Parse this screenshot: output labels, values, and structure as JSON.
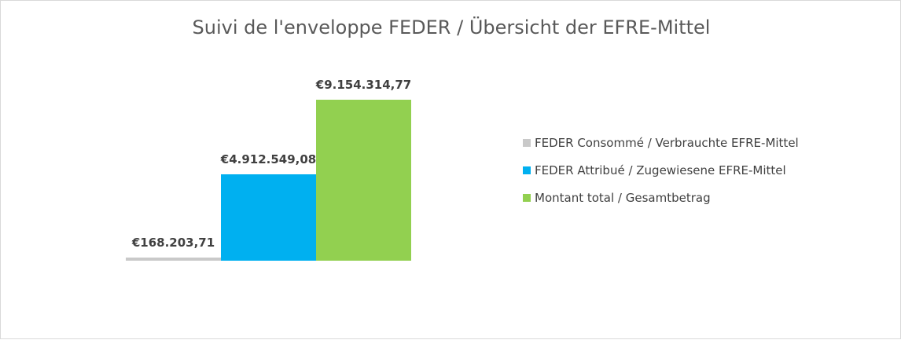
{
  "chart_data": {
    "type": "bar",
    "title": "Suivi de l'enveloppe FEDER / Übersicht der EFRE-Mittel",
    "categories": [
      ""
    ],
    "ylim": [
      0,
      9154314.77
    ],
    "grid": false,
    "legend_position": "right",
    "series": [
      {
        "name": "FEDER Consommé / Verbrauchte EFRE-Mittel",
        "values": [
          168203.71
        ],
        "label": "€168.203,71",
        "color": "#c9c9c9"
      },
      {
        "name": "FEDER Attribué / Zugewiesene EFRE-Mittel",
        "values": [
          4912549.08
        ],
        "label": "€4.912.549,08",
        "color": "#00b0f0"
      },
      {
        "name": "Montant total / Gesamtbetrag",
        "values": [
          9154314.77
        ],
        "label": "€9.154.314,77",
        "color": "#92d050"
      }
    ]
  }
}
